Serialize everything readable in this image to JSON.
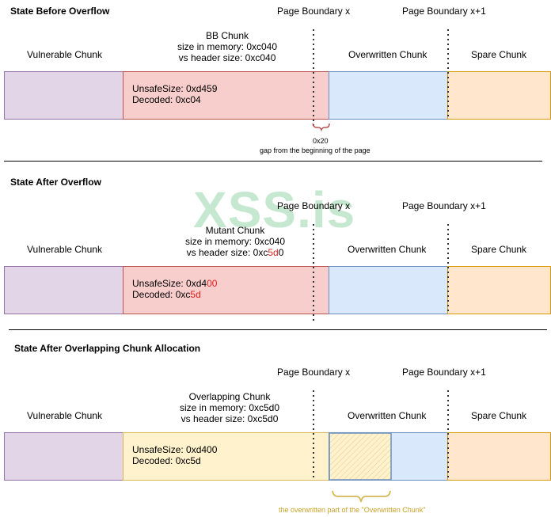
{
  "colors": {
    "vuln_fill": "#e1d5e7",
    "vuln_stroke": "#9673a6",
    "red_fill": "#f8cecc",
    "red_stroke": "#b85450",
    "blue_fill": "#dae8fc",
    "blue_stroke": "#6c8ebf",
    "orange_fill": "#ffe6cc",
    "orange_stroke": "#d79b00",
    "yellow_fill": "#fff2cc",
    "yellow_stroke": "#d6b656",
    "highlight_red": "#e02020"
  },
  "watermark": "XSS.is",
  "section1": {
    "title": "State Before Overflow",
    "page_boundary_x": "Page Boundary x",
    "page_boundary_x1": "Page Boundary x+1",
    "vuln_label": "Vulnerable Chunk",
    "bb_line1": "BB Chunk",
    "bb_line2": "size in memory: 0xc040",
    "bb_line3": "vs header size: 0xc040",
    "overwritten_label": "Overwritten Chunk",
    "spare_label": "Spare Chunk",
    "unsafe_size": "UnsafeSize: 0xd459",
    "decoded": "Decoded: 0xc04",
    "gap_value": "0x20",
    "gap_text": "gap from the beginning of the page"
  },
  "section2": {
    "title": "State After Overflow",
    "page_boundary_x": "Page Boundary x",
    "page_boundary_x1": "Page Boundary x+1",
    "vuln_label": "Vulnerable Chunk",
    "mutant_line1": "Mutant Chunk",
    "mutant_line2": "size in memory: 0xc040",
    "mutant_line3_pre": "vs header size: 0xc",
    "mutant_line3_hl": "5d",
    "mutant_line3_post": "0",
    "overwritten_label": "Overwritten Chunk",
    "spare_label": "Spare Chunk",
    "unsafe_pre": "UnsafeSize: 0xd4",
    "unsafe_hl": "00",
    "decoded_pre": "Decoded: 0xc",
    "decoded_hl": "5d"
  },
  "section3": {
    "title": "State After Overlapping Chunk Allocation",
    "page_boundary_x": "Page Boundary x",
    "page_boundary_x1": "Page Boundary x+1",
    "vuln_label": "Vulnerable Chunk",
    "overlap_line1": "Overlapping Chunk",
    "overlap_line2": "size in memory: 0xc5d0",
    "overlap_line3": "vs header size: 0xc5d0",
    "overwritten_label": "Overwritten Chunk",
    "spare_label": "Spare Chunk",
    "unsafe_size": "UnsafeSize: 0xd400",
    "decoded": "Decoded: 0xc5d",
    "overwritten_part_text": "the overwritten part of the \"Overwritten Chunk\""
  }
}
